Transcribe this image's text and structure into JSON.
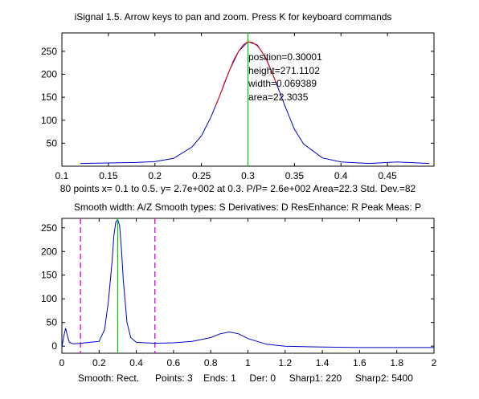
{
  "window_title": "iSignal 1.5. Arrow keys to pan and zoom. Press K for keyboard commands",
  "upper_info": "80 points x= 0.1 to 0.5. y= 2.7e+002 at 0.3. P/P= 2.6e+002  Area=22.3  Std. Dev.=82",
  "lower_title": "Smooth width: A/Z    Smooth types: S    Derivatives: D     ResEnhance: R     Peak Meas: P",
  "status_line": "Smooth: Rect.      Points: 3    Ends: 1     Der: 0     Sharp1: 220     Sharp2: 5400",
  "peak_annotation": {
    "position": "position=0.30001",
    "height": "height=271.1102",
    "width": "width=0.069389",
    "area": "area=22.3035"
  },
  "colors": {
    "signal": "#0000cc",
    "fit": "#ee0000",
    "cursor": "#00cc00",
    "range_marker": "#dd00dd",
    "axes": "#000000"
  },
  "chart_data": [
    {
      "type": "line",
      "title": "iSignal 1.5. Arrow keys to pan and zoom. Press K for keyboard commands",
      "xlim": [
        0.1,
        0.5
      ],
      "ylim": [
        0,
        290
      ],
      "x_ticks": [
        "0.1",
        "0.15",
        "0.2",
        "0.25",
        "0.3",
        "0.35",
        "0.4",
        "0.45"
      ],
      "y_ticks": [
        "50",
        "100",
        "150",
        "200",
        "250"
      ],
      "series": [
        {
          "color": "#0000cc",
          "x": [
            0.12,
            0.15,
            0.18,
            0.2,
            0.22,
            0.24,
            0.25,
            0.26,
            0.27,
            0.28,
            0.29,
            0.3,
            0.31,
            0.32,
            0.33,
            0.34,
            0.35,
            0.36,
            0.38,
            0.4,
            0.43,
            0.46,
            0.495
          ],
          "y": [
            6,
            7,
            8,
            10,
            17,
            42,
            66,
            106,
            155,
            208,
            250,
            271,
            264,
            233,
            183,
            130,
            80,
            48,
            18,
            9,
            6,
            9,
            6
          ]
        },
        {
          "color": "#ee0000",
          "x": [
            0.265,
            0.27,
            0.275,
            0.28,
            0.285,
            0.29,
            0.295,
            0.3,
            0.305,
            0.31,
            0.315,
            0.32,
            0.325,
            0.33
          ],
          "y": [
            130,
            155,
            183,
            208,
            232,
            250,
            264,
            271,
            269,
            262,
            249,
            231,
            208,
            183
          ]
        }
      ],
      "cursor_x": 0.3
    },
    {
      "type": "line",
      "xlim": [
        0,
        2
      ],
      "ylim": [
        -15,
        270
      ],
      "x_ticks": [
        "0",
        "0.2",
        "0.4",
        "0.6",
        "0.8",
        "1",
        "1.2",
        "1.4",
        "1.6",
        "1.8",
        "2"
      ],
      "y_ticks": [
        "0",
        "50",
        "100",
        "150",
        "200",
        "250"
      ],
      "series": [
        {
          "color": "#0000cc",
          "x": [
            0.0,
            0.01,
            0.02,
            0.03,
            0.04,
            0.06,
            0.1,
            0.15,
            0.2,
            0.23,
            0.25,
            0.27,
            0.28,
            0.29,
            0.3,
            0.31,
            0.32,
            0.33,
            0.35,
            0.37,
            0.4,
            0.5,
            0.6,
            0.7,
            0.8,
            0.85,
            0.9,
            0.95,
            1.0,
            1.1,
            1.2,
            1.4,
            1.6,
            1.8,
            2.0
          ],
          "y": [
            -2,
            20,
            38,
            22,
            8,
            5,
            6,
            8,
            10,
            35,
            95,
            180,
            235,
            262,
            268,
            255,
            205,
            140,
            50,
            18,
            8,
            6,
            7,
            10,
            18,
            26,
            30,
            26,
            16,
            4,
            0,
            -2,
            -3,
            -3,
            -3
          ]
        }
      ],
      "cursor_x": 0.3,
      "range_markers": [
        0.1,
        0.5
      ]
    }
  ]
}
